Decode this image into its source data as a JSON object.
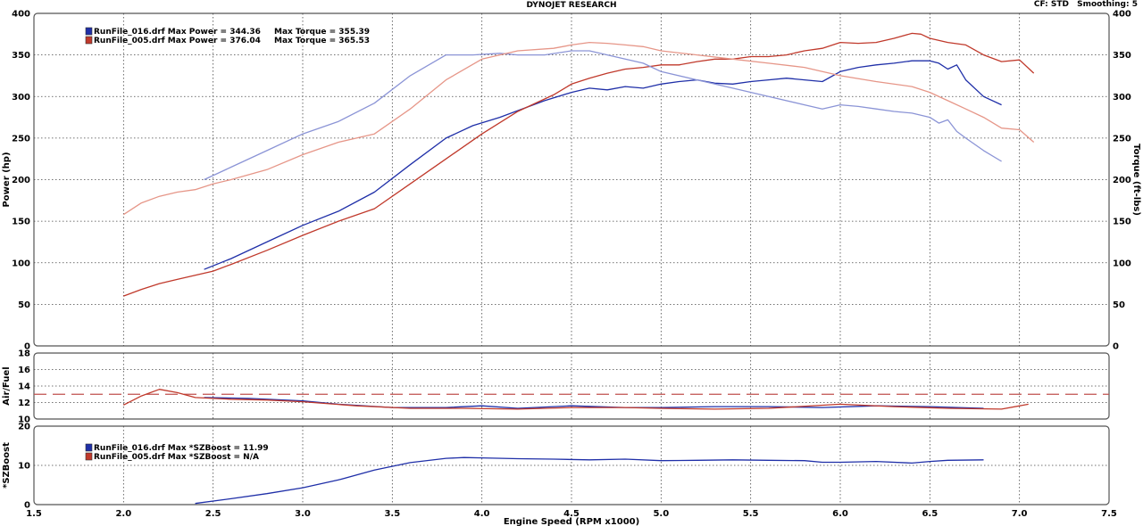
{
  "header": {
    "title": "DYNOJET RESEARCH",
    "cf_label": "CF: STD",
    "smoothing_label": "Smoothing: 5"
  },
  "colors": {
    "run016": "#1f2fa8",
    "run005": "#c0392b",
    "run016_light": "#8b94d6",
    "run005_light": "#e69688",
    "afr_target": "#c0504d"
  },
  "chart_data": [
    {
      "type": "line",
      "panel": "power-torque",
      "xlabel": "Engine Speed (RPM x1000)",
      "ylabel": "Power (hp)",
      "y2label": "Torque (ft-lbs)",
      "xlim": [
        1.5,
        7.5
      ],
      "ylim": [
        0,
        400
      ],
      "y2lim": [
        0,
        400
      ],
      "yticks": [
        0,
        50,
        100,
        150,
        200,
        250,
        300,
        350,
        400
      ],
      "grid": true,
      "legend": [
        {
          "run": "RunFile_016.drf",
          "power_text": "RunFile_016.drf Max Power = 344.36",
          "torque_text": "Max Torque = 355.39"
        },
        {
          "run": "RunFile_005.drf",
          "power_text": "RunFile_005.drf Max Power = 376.04",
          "torque_text": "Max Torque = 365.53"
        }
      ],
      "series": [
        {
          "name": "RunFile_016.drf Power",
          "color": "run016",
          "x": [
            2.45,
            2.6,
            2.8,
            3.0,
            3.2,
            3.4,
            3.6,
            3.8,
            3.95,
            4.1,
            4.2,
            4.35,
            4.5,
            4.6,
            4.7,
            4.8,
            4.9,
            5.0,
            5.1,
            5.2,
            5.3,
            5.4,
            5.5,
            5.6,
            5.7,
            5.8,
            5.9,
            6.0,
            6.1,
            6.2,
            6.3,
            6.4,
            6.5,
            6.55,
            6.6,
            6.65,
            6.7,
            6.8,
            6.9
          ],
          "y": [
            92,
            105,
            125,
            145,
            162,
            185,
            218,
            250,
            265,
            275,
            283,
            295,
            305,
            310,
            308,
            312,
            310,
            315,
            318,
            320,
            316,
            315,
            318,
            320,
            322,
            320,
            318,
            330,
            335,
            338,
            340,
            343,
            343,
            340,
            333,
            338,
            320,
            300,
            290
          ]
        },
        {
          "name": "RunFile_005.drf Power",
          "color": "run005",
          "x": [
            2.0,
            2.1,
            2.2,
            2.3,
            2.4,
            2.5,
            2.6,
            2.8,
            3.0,
            3.2,
            3.4,
            3.6,
            3.8,
            4.0,
            4.2,
            4.4,
            4.5,
            4.6,
            4.7,
            4.8,
            4.9,
            5.0,
            5.1,
            5.2,
            5.3,
            5.4,
            5.5,
            5.6,
            5.7,
            5.8,
            5.9,
            6.0,
            6.1,
            6.2,
            6.3,
            6.4,
            6.45,
            6.5,
            6.6,
            6.7,
            6.8,
            6.9,
            7.0,
            7.08
          ],
          "y": [
            60,
            68,
            75,
            80,
            85,
            90,
            98,
            115,
            133,
            150,
            165,
            195,
            225,
            255,
            282,
            302,
            315,
            322,
            328,
            333,
            335,
            338,
            338,
            342,
            345,
            345,
            348,
            348,
            350,
            355,
            358,
            365,
            364,
            365,
            370,
            376,
            375,
            370,
            365,
            362,
            350,
            342,
            344,
            328
          ]
        },
        {
          "name": "RunFile_016.drf Torque",
          "color": "run016_light",
          "x": [
            2.45,
            2.6,
            2.8,
            3.0,
            3.2,
            3.4,
            3.6,
            3.8,
            3.95,
            4.1,
            4.2,
            4.35,
            4.5,
            4.6,
            4.7,
            4.8,
            4.9,
            5.0,
            5.2,
            5.4,
            5.6,
            5.8,
            5.9,
            6.0,
            6.1,
            6.2,
            6.3,
            6.4,
            6.5,
            6.55,
            6.6,
            6.65,
            6.7,
            6.8,
            6.9
          ],
          "y": [
            200,
            215,
            235,
            255,
            270,
            292,
            325,
            350,
            350,
            352,
            350,
            350,
            355,
            355,
            350,
            345,
            340,
            330,
            320,
            310,
            300,
            290,
            285,
            290,
            288,
            285,
            282,
            280,
            275,
            268,
            272,
            258,
            250,
            235,
            222
          ]
        },
        {
          "name": "RunFile_005.drf Torque",
          "color": "run005_light",
          "x": [
            2.0,
            2.1,
            2.2,
            2.3,
            2.4,
            2.5,
            2.6,
            2.8,
            3.0,
            3.2,
            3.4,
            3.6,
            3.8,
            4.0,
            4.2,
            4.4,
            4.5,
            4.6,
            4.7,
            4.8,
            4.9,
            5.0,
            5.2,
            5.4,
            5.6,
            5.8,
            6.0,
            6.2,
            6.4,
            6.5,
            6.6,
            6.7,
            6.8,
            6.9,
            7.0,
            7.08
          ],
          "y": [
            158,
            172,
            180,
            185,
            188,
            195,
            200,
            212,
            230,
            245,
            255,
            285,
            320,
            345,
            355,
            358,
            362,
            365,
            364,
            362,
            360,
            355,
            350,
            345,
            340,
            335,
            325,
            318,
            312,
            305,
            295,
            285,
            275,
            262,
            260,
            245
          ]
        }
      ]
    },
    {
      "type": "line",
      "panel": "air-fuel",
      "ylabel": "Air/Fuel",
      "xlim": [
        1.5,
        7.5
      ],
      "ylim": [
        10,
        18
      ],
      "yticks": [
        10,
        12,
        14,
        16,
        18
      ],
      "grid": true,
      "target_afr": 13,
      "series": [
        {
          "name": "RunFile_016.drf Air/Fuel",
          "color": "run016",
          "x": [
            2.45,
            2.7,
            3.0,
            3.2,
            3.5,
            3.8,
            4.0,
            4.2,
            4.5,
            4.8,
            5.0,
            5.3,
            5.6,
            5.9,
            6.2,
            6.5,
            6.8
          ],
          "y": [
            12.6,
            12.5,
            12.2,
            11.8,
            11.4,
            11.4,
            11.6,
            11.3,
            11.6,
            11.4,
            11.4,
            11.5,
            11.5,
            11.4,
            11.6,
            11.5,
            11.3
          ]
        },
        {
          "name": "RunFile_005.drf Air/Fuel",
          "color": "run005",
          "x": [
            2.0,
            2.1,
            2.2,
            2.3,
            2.4,
            2.6,
            2.8,
            3.0,
            3.3,
            3.6,
            3.9,
            4.2,
            4.5,
            4.8,
            5.0,
            5.3,
            5.6,
            6.0,
            6.3,
            6.6,
            6.9,
            7.05
          ],
          "y": [
            11.7,
            12.8,
            13.6,
            13.2,
            12.6,
            12.4,
            12.3,
            12.1,
            11.6,
            11.3,
            11.3,
            11.2,
            11.4,
            11.4,
            11.3,
            11.2,
            11.3,
            11.8,
            11.5,
            11.3,
            11.2,
            11.8
          ]
        }
      ]
    },
    {
      "type": "line",
      "panel": "boost",
      "ylabel": "*SZBoost",
      "xlim": [
        1.5,
        7.5
      ],
      "ylim": [
        0,
        20
      ],
      "yticks": [
        0,
        10,
        20
      ],
      "xticks": [
        "1.5",
        "2.0",
        "2.5",
        "3.0",
        "3.5",
        "4.0",
        "4.5",
        "5.0",
        "5.5",
        "6.0",
        "6.5",
        "7.0",
        "7.5"
      ],
      "grid": true,
      "legend": [
        {
          "run": "RunFile_016.drf",
          "text": "RunFile_016.drf Max *SZBoost = 11.99"
        },
        {
          "run": "RunFile_005.drf",
          "text": "RunFile_005.drf Max *SZBoost = N/A"
        }
      ],
      "series": [
        {
          "name": "RunFile_016.drf *SZBoost",
          "color": "run016",
          "x": [
            2.4,
            2.6,
            2.8,
            3.0,
            3.2,
            3.4,
            3.6,
            3.8,
            3.9,
            4.0,
            4.2,
            4.4,
            4.6,
            4.8,
            5.0,
            5.2,
            5.4,
            5.6,
            5.8,
            5.9,
            6.0,
            6.2,
            6.4,
            6.5,
            6.6,
            6.8
          ],
          "y": [
            0.3,
            1.5,
            2.8,
            4.3,
            6.3,
            8.8,
            10.7,
            11.8,
            12.0,
            11.9,
            11.7,
            11.6,
            11.4,
            11.6,
            11.2,
            11.3,
            11.4,
            11.3,
            11.2,
            10.8,
            10.8,
            11.0,
            10.6,
            11.0,
            11.3,
            11.4
          ]
        }
      ]
    }
  ]
}
